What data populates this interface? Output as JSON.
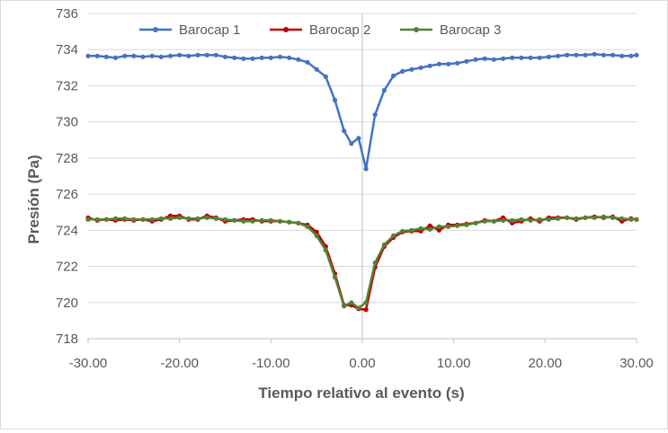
{
  "chart_data": {
    "type": "line",
    "title": "",
    "xlabel": "Tiempo relativo al evento (s)",
    "ylabel": "Presión (Pa)",
    "xlim": [
      -30,
      30
    ],
    "ylim": [
      718,
      736
    ],
    "x_ticks": [
      "-30.00",
      "-20.00",
      "-10.00",
      "0.00",
      "10.00",
      "20.00",
      "30.00"
    ],
    "y_ticks": [
      "718",
      "720",
      "722",
      "724",
      "726",
      "728",
      "730",
      "732",
      "734",
      "736"
    ],
    "grid": "horizontal",
    "legend_position": "top",
    "series": [
      {
        "name": "Barocap 1",
        "color": "#4472c4",
        "points": [
          [
            -30,
            733.65
          ],
          [
            -29,
            733.65
          ],
          [
            -28,
            733.6
          ],
          [
            -27,
            733.55
          ],
          [
            -26,
            733.65
          ],
          [
            -25,
            733.65
          ],
          [
            -24,
            733.6
          ],
          [
            -23,
            733.65
          ],
          [
            -22,
            733.6
          ],
          [
            -21,
            733.65
          ],
          [
            -20,
            733.7
          ],
          [
            -19,
            733.65
          ],
          [
            -18,
            733.7
          ],
          [
            -17,
            733.7
          ],
          [
            -16,
            733.7
          ],
          [
            -15,
            733.6
          ],
          [
            -14,
            733.55
          ],
          [
            -13,
            733.5
          ],
          [
            -12,
            733.5
          ],
          [
            -11,
            733.55
          ],
          [
            -10,
            733.55
          ],
          [
            -9,
            733.6
          ],
          [
            -8,
            733.55
          ],
          [
            -7,
            733.45
          ],
          [
            -6,
            733.3
          ],
          [
            -5,
            732.9
          ],
          [
            -4,
            732.5
          ],
          [
            -3,
            731.2
          ],
          [
            -2,
            729.5
          ],
          [
            -1.2,
            728.8
          ],
          [
            -0.4,
            729.1
          ],
          [
            0.4,
            727.4
          ],
          [
            1.4,
            730.4
          ],
          [
            2.4,
            731.75
          ],
          [
            3.4,
            732.55
          ],
          [
            4.4,
            732.8
          ],
          [
            5.4,
            732.9
          ],
          [
            6.4,
            733.0
          ],
          [
            7.4,
            733.1
          ],
          [
            8.4,
            733.2
          ],
          [
            9.4,
            733.2
          ],
          [
            10.4,
            733.25
          ],
          [
            11.4,
            733.35
          ],
          [
            12.4,
            733.45
          ],
          [
            13.4,
            733.5
          ],
          [
            14.4,
            733.45
          ],
          [
            15.4,
            733.5
          ],
          [
            16.4,
            733.55
          ],
          [
            17.4,
            733.55
          ],
          [
            18.4,
            733.55
          ],
          [
            19.4,
            733.55
          ],
          [
            20.4,
            733.6
          ],
          [
            21.4,
            733.65
          ],
          [
            22.4,
            733.7
          ],
          [
            23.4,
            733.7
          ],
          [
            24.4,
            733.7
          ],
          [
            25.4,
            733.75
          ],
          [
            26.4,
            733.7
          ],
          [
            27.4,
            733.7
          ],
          [
            28.4,
            733.65
          ],
          [
            29.4,
            733.65
          ],
          [
            30,
            733.7
          ]
        ]
      },
      {
        "name": "Barocap 2",
        "color": "#c00000",
        "points": [
          [
            -30,
            724.7
          ],
          [
            -29,
            724.55
          ],
          [
            -28,
            724.6
          ],
          [
            -27,
            724.55
          ],
          [
            -26,
            724.6
          ],
          [
            -25,
            724.55
          ],
          [
            -24,
            724.6
          ],
          [
            -23,
            724.5
          ],
          [
            -22,
            724.6
          ],
          [
            -21,
            724.8
          ],
          [
            -20,
            724.8
          ],
          [
            -19,
            724.6
          ],
          [
            -18,
            724.6
          ],
          [
            -17,
            724.8
          ],
          [
            -16,
            724.7
          ],
          [
            -15,
            724.5
          ],
          [
            -14,
            724.55
          ],
          [
            -13,
            724.6
          ],
          [
            -12,
            724.6
          ],
          [
            -11,
            724.5
          ],
          [
            -10,
            724.5
          ],
          [
            -9,
            724.5
          ],
          [
            -8,
            724.45
          ],
          [
            -7,
            724.4
          ],
          [
            -6,
            724.3
          ],
          [
            -5,
            723.9
          ],
          [
            -4,
            723.1
          ],
          [
            -3,
            721.6
          ],
          [
            -2,
            719.85
          ],
          [
            -1.2,
            719.85
          ],
          [
            -0.4,
            719.65
          ],
          [
            0.4,
            719.6
          ],
          [
            1.4,
            721.95
          ],
          [
            2.4,
            723.1
          ],
          [
            3.4,
            723.6
          ],
          [
            4.4,
            723.9
          ],
          [
            5.4,
            723.95
          ],
          [
            6.4,
            723.95
          ],
          [
            7.4,
            724.25
          ],
          [
            8.4,
            724.0
          ],
          [
            9.4,
            724.3
          ],
          [
            10.4,
            724.3
          ],
          [
            11.4,
            724.35
          ],
          [
            12.4,
            724.4
          ],
          [
            13.4,
            724.55
          ],
          [
            14.4,
            724.5
          ],
          [
            15.4,
            724.7
          ],
          [
            16.4,
            724.4
          ],
          [
            17.4,
            724.5
          ],
          [
            18.4,
            724.65
          ],
          [
            19.4,
            724.5
          ],
          [
            20.4,
            724.7
          ],
          [
            21.4,
            724.7
          ],
          [
            22.4,
            724.7
          ],
          [
            23.4,
            724.6
          ],
          [
            24.4,
            724.7
          ],
          [
            25.4,
            724.75
          ],
          [
            26.4,
            724.7
          ],
          [
            27.4,
            724.75
          ],
          [
            28.4,
            724.5
          ],
          [
            29.4,
            724.65
          ],
          [
            30,
            724.6
          ]
        ]
      },
      {
        "name": "Barocap 3",
        "color": "#548235",
        "points": [
          [
            -30,
            724.6
          ],
          [
            -29,
            724.6
          ],
          [
            -28,
            724.6
          ],
          [
            -27,
            724.65
          ],
          [
            -26,
            724.65
          ],
          [
            -25,
            724.6
          ],
          [
            -24,
            724.6
          ],
          [
            -23,
            724.6
          ],
          [
            -22,
            724.65
          ],
          [
            -21,
            724.65
          ],
          [
            -20,
            724.7
          ],
          [
            -19,
            724.65
          ],
          [
            -18,
            724.65
          ],
          [
            -17,
            724.7
          ],
          [
            -16,
            724.65
          ],
          [
            -15,
            724.6
          ],
          [
            -14,
            724.55
          ],
          [
            -13,
            724.5
          ],
          [
            -12,
            724.5
          ],
          [
            -11,
            724.55
          ],
          [
            -10,
            724.55
          ],
          [
            -9,
            724.5
          ],
          [
            -8,
            724.45
          ],
          [
            -7,
            724.4
          ],
          [
            -6,
            724.2
          ],
          [
            -5,
            723.7
          ],
          [
            -4,
            722.9
          ],
          [
            -3,
            721.4
          ],
          [
            -2,
            719.8
          ],
          [
            -1.2,
            720.0
          ],
          [
            -0.4,
            719.7
          ],
          [
            0.4,
            720.0
          ],
          [
            1.4,
            722.2
          ],
          [
            2.4,
            723.2
          ],
          [
            3.4,
            723.7
          ],
          [
            4.4,
            723.95
          ],
          [
            5.4,
            724.0
          ],
          [
            6.4,
            724.1
          ],
          [
            7.4,
            724.05
          ],
          [
            8.4,
            724.2
          ],
          [
            9.4,
            724.2
          ],
          [
            10.4,
            724.25
          ],
          [
            11.4,
            724.3
          ],
          [
            12.4,
            724.4
          ],
          [
            13.4,
            724.5
          ],
          [
            14.4,
            724.5
          ],
          [
            15.4,
            724.55
          ],
          [
            16.4,
            724.55
          ],
          [
            17.4,
            724.6
          ],
          [
            18.4,
            724.55
          ],
          [
            19.4,
            724.6
          ],
          [
            20.4,
            724.6
          ],
          [
            21.4,
            724.65
          ],
          [
            22.4,
            724.7
          ],
          [
            23.4,
            724.65
          ],
          [
            24.4,
            724.7
          ],
          [
            25.4,
            724.7
          ],
          [
            26.4,
            724.75
          ],
          [
            27.4,
            724.7
          ],
          [
            28.4,
            724.65
          ],
          [
            29.4,
            724.6
          ],
          [
            30,
            724.6
          ]
        ]
      }
    ]
  }
}
